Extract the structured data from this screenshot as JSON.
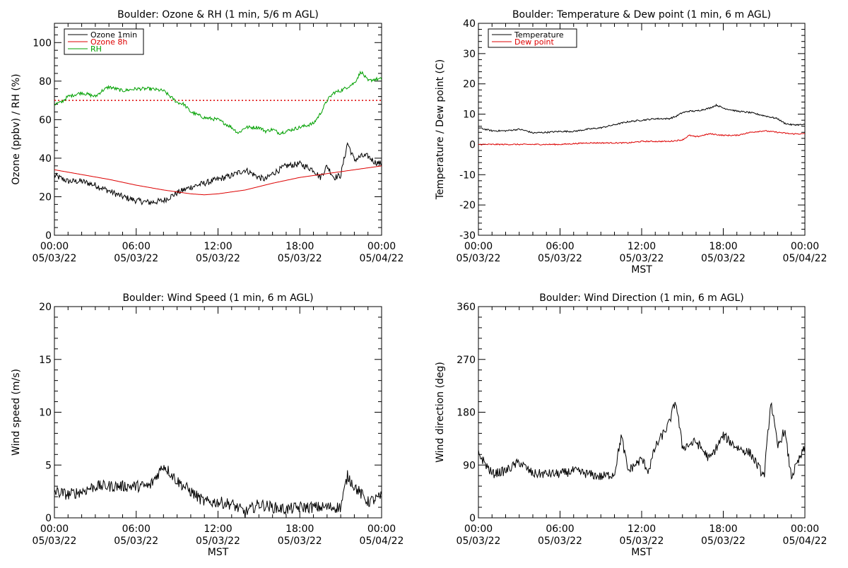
{
  "chart_data": [
    {
      "type": "line",
      "title": "Boulder: Ozone & RH (1 min, 5/6 m AGL)",
      "xlabel": "",
      "ylabel": "Ozone (ppbv) / RH (%)",
      "xlim": [
        0,
        24
      ],
      "ylim": [
        0,
        110
      ],
      "yticks": [
        0,
        20,
        40,
        60,
        80,
        100
      ],
      "xticks": [
        {
          "time": "00:00",
          "date": "05/03/22"
        },
        {
          "time": "06:00",
          "date": "05/03/22"
        },
        {
          "time": "12:00",
          "date": "05/03/22"
        },
        {
          "time": "18:00",
          "date": "05/03/22"
        },
        {
          "time": "00:00",
          "date": "05/04/22"
        }
      ],
      "legend_position": "top-left",
      "reference_line": {
        "y": 70,
        "color": "#dd0000",
        "style": "dotted"
      },
      "series": [
        {
          "name": "Ozone 1min",
          "color": "#000000",
          "noise": 1.6,
          "x": [
            0,
            1,
            2,
            3,
            4,
            5,
            6,
            7,
            8,
            9,
            10,
            11,
            12,
            13,
            14,
            15,
            15.5,
            16,
            17,
            18,
            19,
            19.5,
            20,
            20.5,
            21,
            21.5,
            22,
            22.5,
            23,
            23.5,
            24
          ],
          "y": [
            31,
            28,
            28,
            26,
            23,
            20,
            18,
            17,
            18,
            22,
            25,
            27,
            29,
            31,
            34,
            30,
            29,
            32,
            36,
            37,
            34,
            30,
            36,
            30,
            31,
            48,
            39,
            41,
            41,
            38,
            37
          ]
        },
        {
          "name": "Ozone 8h",
          "color": "#dd0000",
          "noise": 0,
          "x": [
            0,
            2,
            4,
            6,
            8,
            10,
            11,
            12,
            14,
            16,
            18,
            20,
            22,
            24
          ],
          "y": [
            34,
            31.5,
            29,
            26,
            23.5,
            21.5,
            21,
            21.5,
            23.5,
            27,
            30,
            32,
            34,
            36
          ]
        },
        {
          "name": "RH",
          "color": "#00a000",
          "noise": 0.9,
          "x": [
            0,
            0.5,
            1,
            2,
            3,
            3.5,
            4,
            5,
            6,
            7,
            8,
            9,
            9.5,
            10,
            11,
            12,
            13,
            13.5,
            14,
            15,
            15.5,
            16,
            16.5,
            17,
            18,
            19,
            19.5,
            20,
            20.5,
            21,
            22,
            22.5,
            23,
            23.5,
            24
          ],
          "y": [
            68,
            69,
            72,
            74,
            72,
            75,
            77,
            75,
            76,
            76,
            75,
            69,
            68,
            64,
            61,
            60,
            56,
            53,
            56,
            56,
            54,
            55,
            53,
            54,
            56,
            58,
            63,
            70,
            74,
            75,
            79,
            85,
            80,
            81,
            81
          ]
        }
      ]
    },
    {
      "type": "line",
      "title": "Boulder: Temperature & Dew point (1 min, 6 m AGL)",
      "xlabel": "MST",
      "ylabel": "Temperature / Dew point (C)",
      "xlim": [
        0,
        24
      ],
      "ylim": [
        -30,
        40
      ],
      "yticks": [
        -30,
        -20,
        -10,
        0,
        10,
        20,
        30,
        40
      ],
      "xticks": [
        {
          "time": "00:00",
          "date": "05/03/22"
        },
        {
          "time": "06:00",
          "date": "05/03/22"
        },
        {
          "time": "12:00",
          "date": "05/03/22"
        },
        {
          "time": "18:00",
          "date": "05/03/22"
        },
        {
          "time": "00:00",
          "date": "05/04/22"
        }
      ],
      "legend_position": "top-left",
      "series": [
        {
          "name": "Temperature",
          "color": "#000000",
          "noise": 0.25,
          "x": [
            0,
            0.5,
            1,
            2,
            3,
            3.5,
            4,
            5,
            6,
            7,
            8,
            9,
            10,
            11,
            12,
            13,
            14,
            14.5,
            15,
            15.5,
            16,
            17,
            17.5,
            18,
            19,
            20,
            21,
            22,
            22.5,
            23,
            24
          ],
          "y": [
            5.5,
            5,
            4.5,
            4.5,
            5,
            4.5,
            3.8,
            4,
            4.3,
            4.3,
            5,
            5.5,
            6.5,
            7.5,
            8,
            8.5,
            8.5,
            9.2,
            10.5,
            11,
            11,
            12,
            13,
            12,
            11,
            10.5,
            9.5,
            8.5,
            7,
            6.5,
            6.5
          ]
        },
        {
          "name": "Dew point",
          "color": "#dd0000",
          "noise": 0.2,
          "x": [
            0,
            2,
            4,
            6,
            8,
            10,
            11,
            12,
            13,
            14,
            15,
            15.5,
            16,
            17,
            18,
            19,
            20,
            21,
            22,
            23,
            24
          ],
          "y": [
            0,
            0,
            0,
            0,
            0.5,
            0.5,
            0.5,
            1,
            1,
            1,
            1.5,
            3,
            2.5,
            3.5,
            3,
            3,
            4,
            4.5,
            4,
            3.5,
            3.5
          ]
        }
      ]
    },
    {
      "type": "line",
      "title": "Boulder: Wind Speed (1 min, 6 m AGL)",
      "xlabel": "MST",
      "ylabel": "Wind speed (m/s)",
      "xlim": [
        0,
        24
      ],
      "ylim": [
        0,
        20
      ],
      "yticks": [
        0,
        5,
        10,
        15,
        20
      ],
      "xticks": [
        {
          "time": "00:00",
          "date": "05/03/22"
        },
        {
          "time": "06:00",
          "date": "05/03/22"
        },
        {
          "time": "12:00",
          "date": "05/03/22"
        },
        {
          "time": "18:00",
          "date": "05/03/22"
        },
        {
          "time": "00:00",
          "date": "05/04/22"
        }
      ],
      "series": [
        {
          "name": "",
          "color": "#000000",
          "noise": 0.55,
          "x": [
            0,
            1,
            2,
            3,
            4,
            5,
            6,
            7,
            7.5,
            8,
            9,
            10,
            11,
            12,
            13,
            14,
            15,
            16,
            17,
            18,
            19,
            20,
            21,
            21.5,
            22,
            23,
            24
          ],
          "y": [
            2.5,
            2.2,
            2.5,
            3,
            3,
            3,
            3,
            3,
            4,
            5,
            3.5,
            2.5,
            1.5,
            1.5,
            1.3,
            0.5,
            1.3,
            1,
            0.8,
            1,
            1,
            1,
            1,
            4,
            3,
            1.5,
            2
          ]
        }
      ]
    },
    {
      "type": "line",
      "title": "Boulder: Wind Direction (1 min, 6 m AGL)",
      "xlabel": "MST",
      "ylabel": "Wind direction (deg)",
      "xlim": [
        0,
        24
      ],
      "ylim": [
        0,
        360
      ],
      "yticks": [
        0,
        90,
        180,
        270,
        360
      ],
      "xticks": [
        {
          "time": "00:00",
          "date": "05/03/22"
        },
        {
          "time": "06:00",
          "date": "05/03/22"
        },
        {
          "time": "12:00",
          "date": "05/03/22"
        },
        {
          "time": "18:00",
          "date": "05/03/22"
        },
        {
          "time": "00:00",
          "date": "05/04/22"
        }
      ],
      "series": [
        {
          "name": "",
          "color": "#000000",
          "noise": 8,
          "x": [
            0,
            1,
            2,
            3,
            4,
            5,
            6,
            7,
            8,
            9,
            10,
            10.5,
            11,
            12,
            12.5,
            13,
            14,
            14.5,
            15,
            16,
            17,
            18,
            19,
            20,
            21,
            21.5,
            22,
            22.5,
            23,
            24
          ],
          "y": [
            110,
            75,
            80,
            95,
            75,
            75,
            75,
            80,
            75,
            70,
            75,
            140,
            80,
            100,
            80,
            120,
            160,
            200,
            120,
            130,
            100,
            140,
            120,
            110,
            70,
            200,
            120,
            150,
            70,
            120
          ]
        }
      ]
    }
  ]
}
